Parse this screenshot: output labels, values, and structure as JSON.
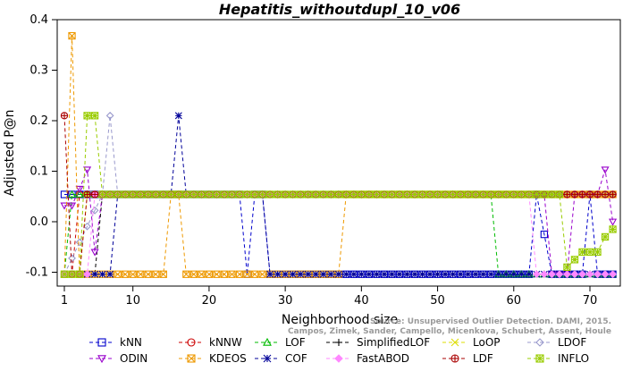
{
  "chart_data": {
    "type": "line",
    "title": "Hepatitis_withoutdupl_10_v06",
    "xlabel": "Neighborhood size",
    "ylabel": "Adjusted P@n",
    "xlim": [
      1,
      73
    ],
    "ylim": [
      -0.12,
      0.4
    ],
    "xticks": [
      1,
      10,
      20,
      30,
      40,
      50,
      60,
      70
    ],
    "yticks": [
      -0.1,
      0.0,
      0.1,
      0.2,
      0.3,
      0.4
    ],
    "ytick_labels": [
      "-0.1",
      "0.0",
      "0.1",
      "0.2",
      "0.3",
      "0.4"
    ],
    "grid": false,
    "legend_position": "bottom",
    "credit_lines": [
      "Source: Unsupervised Outlier Detection. DAMI, 2015.",
      "Campos, Zimek, Sander, Campello, Micenkova, Schubert, Assent, Houle"
    ],
    "series": [
      {
        "name": "kNN",
        "color": "#0000cc",
        "marker": "square",
        "segments": [
          [
            1,
            0.054
          ],
          [
            24,
            0.054
          ],
          [
            25,
            -0.104
          ],
          [
            26,
            0.054
          ],
          [
            27,
            0.054
          ],
          [
            28,
            -0.104
          ],
          [
            62,
            -0.104
          ],
          [
            63,
            0.054
          ],
          [
            64,
            -0.025
          ],
          [
            65,
            -0.104
          ],
          [
            69,
            -0.104
          ],
          [
            70,
            0.054
          ],
          [
            71,
            -0.104
          ],
          [
            73,
            -0.104
          ]
        ]
      },
      {
        "name": "kNNW",
        "color": "#cc0000",
        "marker": "circle",
        "segments": [
          [
            1,
            -0.104
          ],
          [
            2,
            -0.104
          ],
          [
            3,
            0.054
          ],
          [
            73,
            0.054
          ]
        ]
      },
      {
        "name": "LOF",
        "color": "#00bb00",
        "marker": "triangle-up",
        "segments": [
          [
            1,
            -0.104
          ],
          [
            2,
            0.054
          ],
          [
            57,
            0.054
          ],
          [
            58,
            -0.104
          ],
          [
            73,
            -0.104
          ]
        ]
      },
      {
        "name": "SimplifiedLOF",
        "color": "#000000",
        "marker": "plus",
        "segments": [
          [
            1,
            -0.104
          ],
          [
            5,
            -0.104
          ],
          [
            6,
            0.054
          ],
          [
            73,
            0.054
          ]
        ]
      },
      {
        "name": "LoOP",
        "color": "#dddd00",
        "marker": "x",
        "segments": [
          [
            1,
            -0.104
          ],
          [
            3,
            -0.104
          ],
          [
            4,
            0.054
          ],
          [
            73,
            0.054
          ]
        ]
      },
      {
        "name": "LDOF",
        "color": "#9999cc",
        "marker": "diamond",
        "segments": [
          [
            1,
            -0.104
          ],
          [
            6,
            0.054
          ],
          [
            7,
            0.21
          ],
          [
            8,
            0.054
          ],
          [
            73,
            0.054
          ]
        ]
      },
      {
        "name": "ODIN",
        "color": "#9900cc",
        "marker": "triangle-down",
        "segments": [
          [
            1,
            0.032
          ],
          [
            2,
            0.032
          ],
          [
            3,
            0.065
          ],
          [
            4,
            0.103
          ],
          [
            5,
            -0.06
          ],
          [
            6,
            0.054
          ],
          [
            64,
            0.054
          ],
          [
            65,
            -0.104
          ],
          [
            67,
            -0.104
          ],
          [
            68,
            0.054
          ],
          [
            71,
            0.054
          ],
          [
            72,
            0.103
          ],
          [
            73,
            0.0
          ]
        ]
      },
      {
        "name": "KDEOS",
        "color": "#ee9900",
        "marker": "box-x",
        "segments": [
          [
            1,
            -0.104
          ],
          [
            2,
            0.368
          ],
          [
            3,
            -0.104
          ],
          [
            14,
            -0.104
          ],
          [
            15,
            0.054
          ],
          [
            16,
            0.054
          ],
          [
            17,
            -0.104
          ],
          [
            37,
            -0.104
          ],
          [
            38,
            0.054
          ],
          [
            73,
            0.054
          ]
        ]
      },
      {
        "name": "COF",
        "color": "#000099",
        "marker": "asterisk",
        "segments": [
          [
            1,
            -0.104
          ],
          [
            7,
            -0.104
          ],
          [
            8,
            0.054
          ],
          [
            15,
            0.054
          ],
          [
            16,
            0.21
          ],
          [
            17,
            0.054
          ],
          [
            27,
            0.054
          ],
          [
            28,
            -0.104
          ],
          [
            73,
            -0.104
          ]
        ]
      },
      {
        "name": "FastABOD",
        "color": "#ff88ff",
        "marker": "diamond-filled",
        "segments": [
          [
            1,
            -0.104
          ],
          [
            4,
            -0.104
          ],
          [
            5,
            0.054
          ],
          [
            62,
            0.054
          ],
          [
            63,
            -0.104
          ],
          [
            73,
            -0.104
          ]
        ]
      },
      {
        "name": "LDF",
        "color": "#aa0000",
        "marker": "circle-plus",
        "segments": [
          [
            1,
            0.21
          ],
          [
            2,
            -0.104
          ],
          [
            3,
            -0.104
          ],
          [
            4,
            0.054
          ],
          [
            73,
            0.054
          ]
        ]
      },
      {
        "name": "INFLO",
        "color": "#99cc00",
        "marker": "box-asterisk",
        "segments": [
          [
            1,
            -0.104
          ],
          [
            3,
            -0.104
          ],
          [
            4,
            0.21
          ],
          [
            5,
            0.21
          ],
          [
            6,
            0.054
          ],
          [
            66,
            0.054
          ],
          [
            67,
            -0.09
          ],
          [
            68,
            -0.075
          ],
          [
            69,
            -0.06
          ],
          [
            70,
            -0.06
          ],
          [
            71,
            -0.06
          ],
          [
            72,
            -0.03
          ],
          [
            73,
            -0.015
          ]
        ]
      }
    ]
  }
}
